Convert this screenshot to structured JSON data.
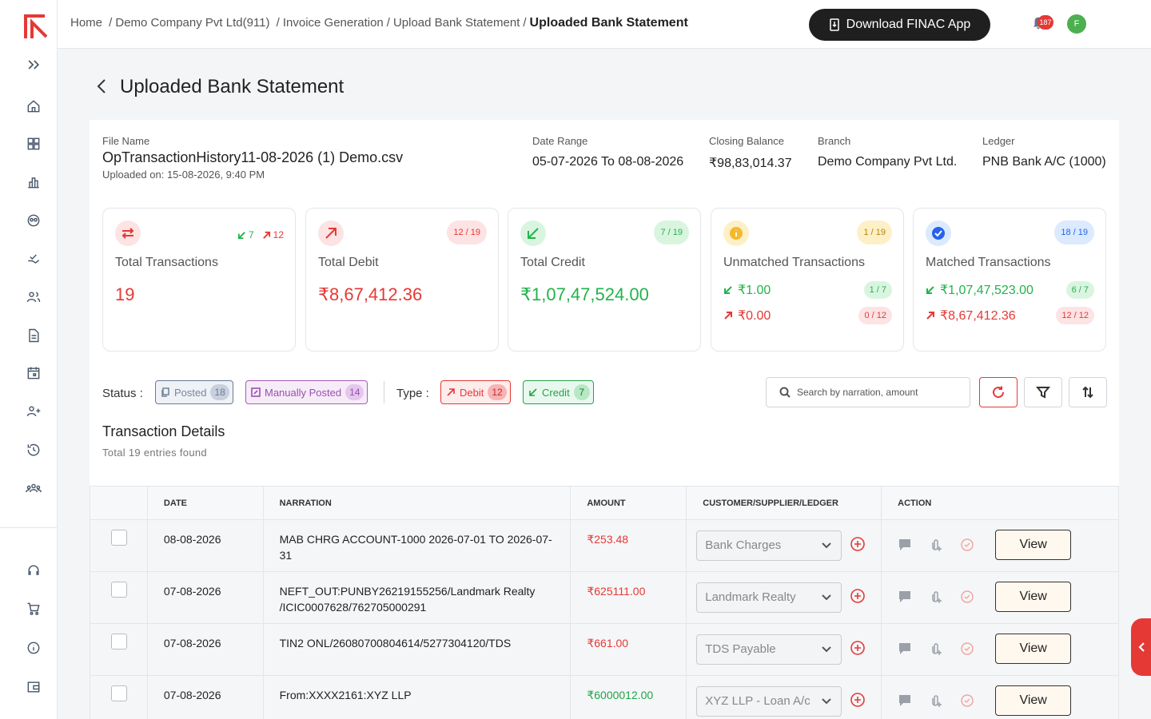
{
  "breadcrumb": {
    "items": [
      "Home",
      "Demo Company Pvt Ltd(911)",
      "Invoice Generation",
      "Upload Bank Statement"
    ],
    "current": "Uploaded Bank Statement"
  },
  "header": {
    "download_label": "Download FINAC App",
    "notification_count": "187",
    "avatar_initial": "F"
  },
  "page": {
    "title": "Uploaded Bank Statement"
  },
  "file_info": {
    "file_name_label": "File Name",
    "file_name": "OpTransactionHistory11-08-2026 (1) Demo.csv",
    "uploaded_on": "Uploaded on: 15-08-2026, 9:40 PM",
    "date_range_label": "Date Range",
    "date_range": "05-07-2026 To 08-08-2026",
    "closing_balance_label": "Closing Balance",
    "closing_balance": "₹98,83,014.37",
    "branch_label": "Branch",
    "branch": "Demo Company Pvt Ltd.",
    "ledger_label": "Ledger",
    "ledger": "PNB Bank A/C (1000)"
  },
  "stats": {
    "total_transactions": {
      "title": "Total Transactions",
      "value": "19",
      "credit_count": "7",
      "debit_count": "12"
    },
    "total_debit": {
      "title": "Total Debit",
      "value": "₹8,67,412.36",
      "ratio": "12 / 19"
    },
    "total_credit": {
      "title": "Total Credit",
      "value": "₹1,07,47,524.00",
      "ratio": "7 / 19"
    },
    "unmatched": {
      "title": "Unmatched Transactions",
      "ratio": "1 / 19",
      "credit_value": "₹1.00",
      "credit_ratio": "1 / 7",
      "debit_value": "₹0.00",
      "debit_ratio": "0 / 12"
    },
    "matched": {
      "title": "Matched Transactions",
      "ratio": "18 / 19",
      "credit_value": "₹1,07,47,523.00",
      "credit_ratio": "6 / 7",
      "debit_value": "₹8,67,412.36",
      "debit_ratio": "12 / 12"
    }
  },
  "filters": {
    "status_label": "Status :",
    "posted_label": "Posted",
    "posted_count": "18",
    "manual_label": "Manually Posted",
    "manual_count": "14",
    "type_label": "Type :",
    "debit_label": "Debit",
    "debit_count": "12",
    "credit_label": "Credit",
    "credit_count": "7",
    "search_placeholder": "Search by narration, amount"
  },
  "section": {
    "title": "Transaction Details",
    "subtitle": "Total 19 entries found"
  },
  "table": {
    "headers": [
      "",
      "DATE",
      "NARRATION",
      "AMOUNT",
      "CUSTOMER/SUPPLIER/LEDGER",
      "ACTION"
    ],
    "view_label": "View",
    "rows": [
      {
        "date": "08-08-2026",
        "narration": "MAB CHRG ACCOUNT-1000 2026-07-01 TO 2026-07-31",
        "amount": "₹253.48",
        "ledger": "Bank Charges"
      },
      {
        "date": "07-08-2026",
        "narration": "NEFT_OUT:PUNBY26219155256/Landmark Realty /ICIC0007628/762705000291",
        "amount": "₹625111.00",
        "ledger": "Landmark Realty"
      },
      {
        "date": "07-08-2026",
        "narration": "TIN2 ONL/26080700804614/5277304120/TDS",
        "amount": "₹661.00",
        "ledger": "TDS Payable"
      },
      {
        "date": "07-08-2026",
        "narration": "From:XXXX2161:XYZ LLP",
        "amount": "₹6000012.00",
        "ledger": "XYZ LLP - Loan A/c"
      }
    ]
  },
  "colors": {
    "accent_red": "#e53935",
    "accent_green": "#22b34a",
    "dark": "#1f1f1f"
  },
  "icons": {
    "sidebar": [
      "expand-icon",
      "home-icon",
      "dashboard-icon",
      "reports-icon",
      "accounts-icon",
      "payments-icon",
      "contacts-icon",
      "documents-icon",
      "calendar-icon",
      "add-user-icon",
      "history-icon",
      "team-icon",
      "support-icon",
      "cart-icon",
      "info-icon",
      "wallet-icon"
    ]
  }
}
